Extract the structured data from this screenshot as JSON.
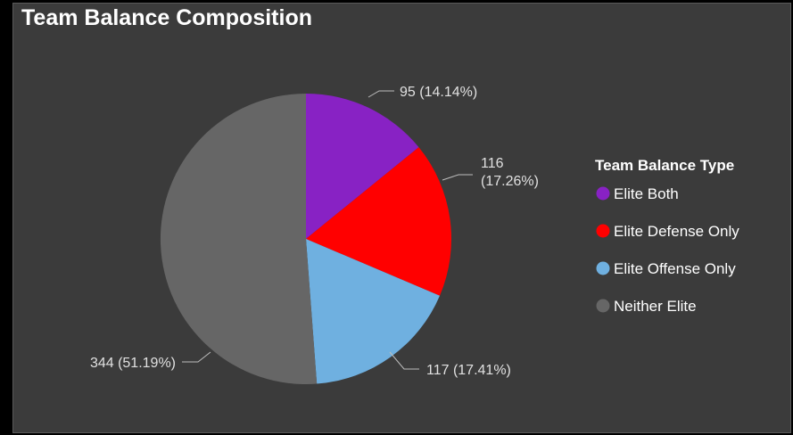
{
  "chart_data": {
    "type": "pie",
    "title": "Team Balance Composition",
    "legend_title": "Team Balance Type",
    "legend_position": "right",
    "start_angle_deg": 0,
    "direction": "clockwise",
    "slices": [
      {
        "name": "Elite Both",
        "value": 95,
        "percent": 14.14,
        "label_lines": [
          "95 (14.14%)"
        ],
        "color": "#8822c4"
      },
      {
        "name": "Elite Defense Only",
        "value": 116,
        "percent": 17.26,
        "label_lines": [
          "116",
          "(17.26%)"
        ],
        "color": "#ff0000"
      },
      {
        "name": "Elite Offense Only",
        "value": 117,
        "percent": 17.41,
        "label_lines": [
          "117 (17.41%)"
        ],
        "color": "#6fb0e0"
      },
      {
        "name": "Neither Elite",
        "value": 344,
        "percent": 51.19,
        "label_lines": [
          "344 (51.19%)"
        ],
        "color": "#666666"
      }
    ]
  },
  "colors": {
    "background": "#000000",
    "panel": "#3b3b3b",
    "text": "#ffffff",
    "label": "#e0e0e0",
    "leader": "#bdbdbd"
  }
}
